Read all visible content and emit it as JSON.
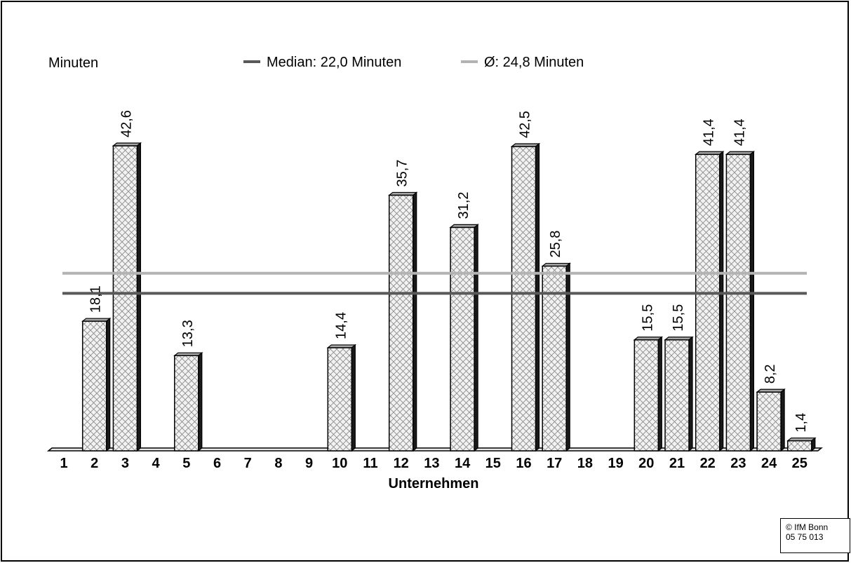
{
  "chart_data": {
    "type": "bar",
    "ylabel": "Minuten",
    "xlabel": "Unternehmen",
    "categories": [
      "1",
      "2",
      "3",
      "4",
      "5",
      "6",
      "7",
      "8",
      "9",
      "10",
      "11",
      "12",
      "13",
      "14",
      "15",
      "16",
      "17",
      "18",
      "19",
      "20",
      "21",
      "22",
      "23",
      "24",
      "25"
    ],
    "values": [
      0,
      18.1,
      42.6,
      0,
      13.3,
      0,
      0,
      0,
      0,
      14.4,
      0,
      35.7,
      0,
      31.2,
      0,
      42.5,
      25.8,
      0,
      0,
      15.5,
      15.5,
      41.4,
      41.4,
      8.2,
      1.4
    ],
    "data_labels": [
      "",
      "18,1",
      "42,6",
      "",
      "13,3",
      "",
      "",
      "",
      "",
      "14,4",
      "",
      "35,7",
      "",
      "31,2",
      "",
      "42,5",
      "25,8",
      "",
      "",
      "15,5",
      "15,5",
      "41,4",
      "41,4",
      "8,2",
      "1,4"
    ],
    "ylim": [
      0,
      46
    ],
    "grid": false,
    "legend_position": "top",
    "reference_lines": [
      {
        "name": "Median: 22,0 Minuten",
        "value": 22.0,
        "color": "#595959"
      },
      {
        "name": "Ø: 24,8 Minuten",
        "value": 24.8,
        "color": "#b3b3b3"
      }
    ],
    "bar_fill": "crosshatch",
    "bar_edge_color": "#000000"
  },
  "credit": {
    "line1": "© IfM Bonn",
    "line2": "05 75 013"
  }
}
